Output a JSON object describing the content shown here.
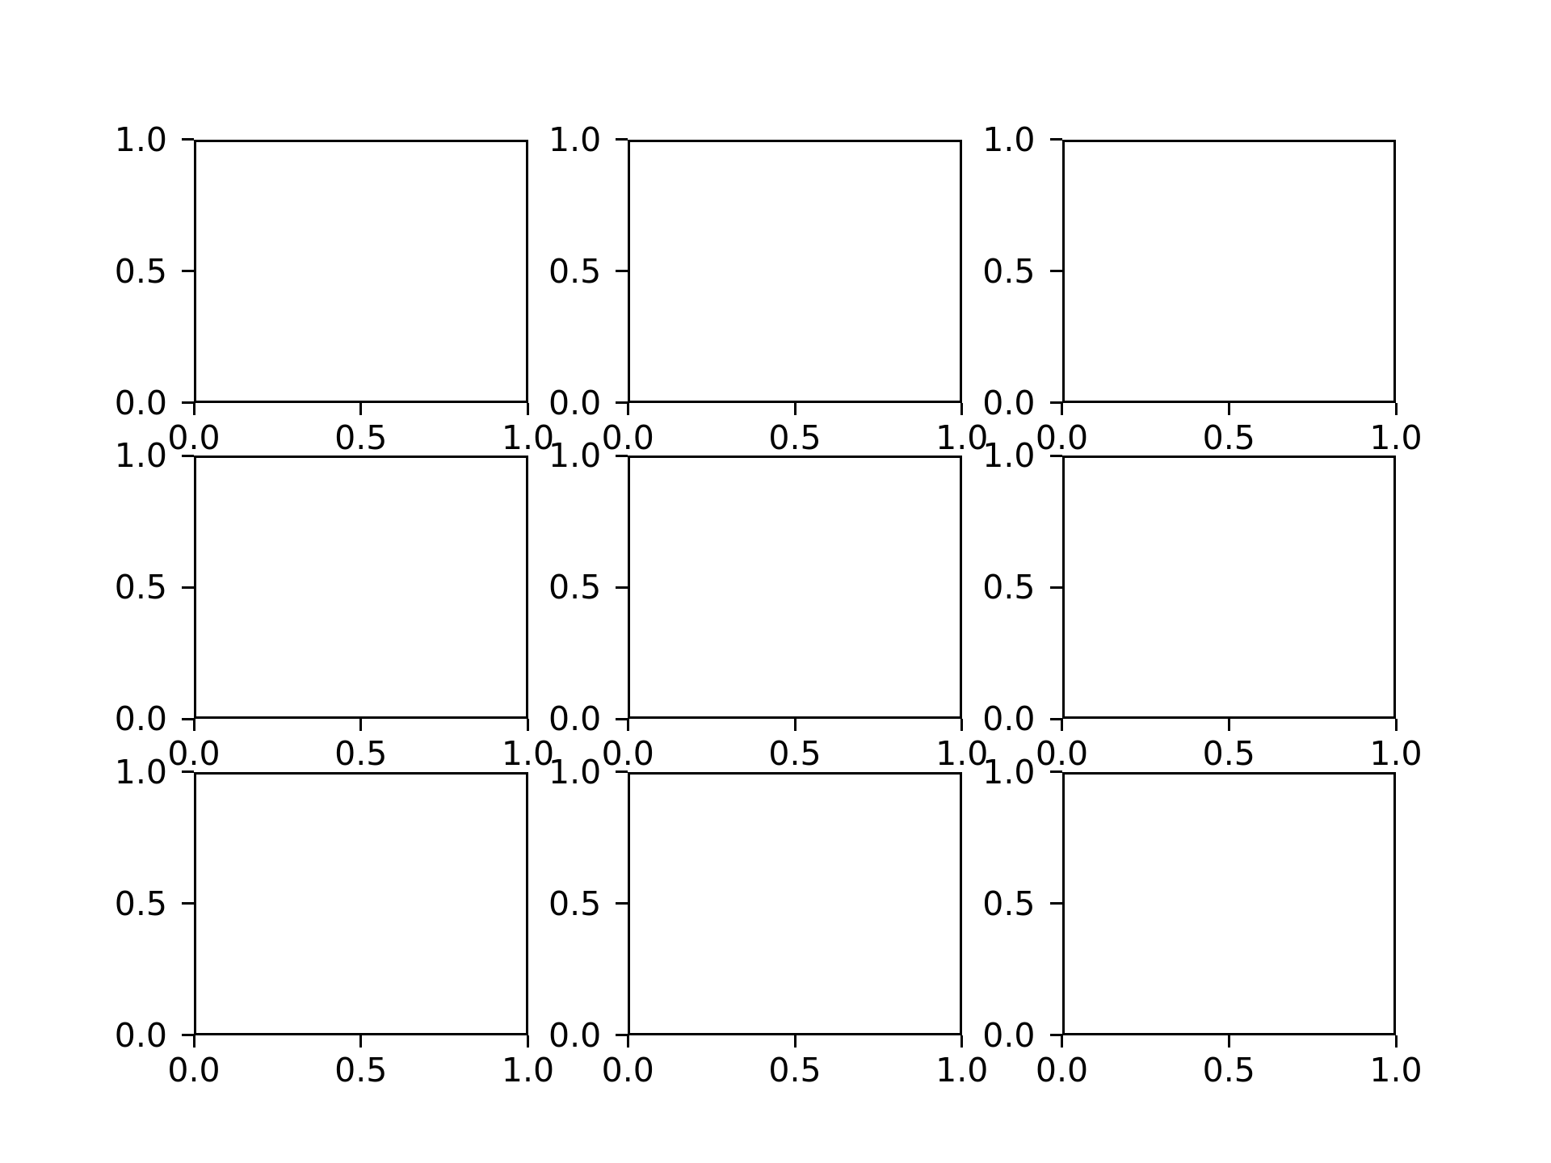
{
  "figure": {
    "background": "#ffffff",
    "axis_color": "#000000",
    "text_color": "#000000",
    "rows": 3,
    "cols": 3
  },
  "chart_data": [
    {
      "type": "empty",
      "row": 0,
      "col": 0,
      "title": "",
      "xlabel": "",
      "ylabel": "",
      "xlim": [
        0.0,
        1.0
      ],
      "ylim": [
        0.0,
        1.0
      ],
      "xticks": [
        0.0,
        0.5,
        1.0
      ],
      "yticks": [
        0.0,
        0.5,
        1.0
      ],
      "xticklabels": [
        "0.0",
        "0.5",
        "1.0"
      ],
      "yticklabels": [
        "0.0",
        "0.5",
        "1.0"
      ],
      "grid": false,
      "series": []
    },
    {
      "type": "empty",
      "row": 0,
      "col": 1,
      "title": "",
      "xlabel": "",
      "ylabel": "",
      "xlim": [
        0.0,
        1.0
      ],
      "ylim": [
        0.0,
        1.0
      ],
      "xticks": [
        0.0,
        0.5,
        1.0
      ],
      "yticks": [
        0.0,
        0.5,
        1.0
      ],
      "xticklabels": [
        "0.0",
        "0.5",
        "1.0"
      ],
      "yticklabels": [
        "0.0",
        "0.5",
        "1.0"
      ],
      "grid": false,
      "series": []
    },
    {
      "type": "empty",
      "row": 0,
      "col": 2,
      "title": "",
      "xlabel": "",
      "ylabel": "",
      "xlim": [
        0.0,
        1.0
      ],
      "ylim": [
        0.0,
        1.0
      ],
      "xticks": [
        0.0,
        0.5,
        1.0
      ],
      "yticks": [
        0.0,
        0.5,
        1.0
      ],
      "xticklabels": [
        "0.0",
        "0.5",
        "1.0"
      ],
      "yticklabels": [
        "0.0",
        "0.5",
        "1.0"
      ],
      "grid": false,
      "series": []
    },
    {
      "type": "empty",
      "row": 1,
      "col": 0,
      "title": "",
      "xlabel": "",
      "ylabel": "",
      "xlim": [
        0.0,
        1.0
      ],
      "ylim": [
        0.0,
        1.0
      ],
      "xticks": [
        0.0,
        0.5,
        1.0
      ],
      "yticks": [
        0.0,
        0.5,
        1.0
      ],
      "xticklabels": [
        "0.0",
        "0.5",
        "1.0"
      ],
      "yticklabels": [
        "0.0",
        "0.5",
        "1.0"
      ],
      "grid": false,
      "series": []
    },
    {
      "type": "empty",
      "row": 1,
      "col": 1,
      "title": "",
      "xlabel": "",
      "ylabel": "",
      "xlim": [
        0.0,
        1.0
      ],
      "ylim": [
        0.0,
        1.0
      ],
      "xticks": [
        0.0,
        0.5,
        1.0
      ],
      "yticks": [
        0.0,
        0.5,
        1.0
      ],
      "xticklabels": [
        "0.0",
        "0.5",
        "1.0"
      ],
      "yticklabels": [
        "0.0",
        "0.5",
        "1.0"
      ],
      "grid": false,
      "series": []
    },
    {
      "type": "empty",
      "row": 1,
      "col": 2,
      "title": "",
      "xlabel": "",
      "ylabel": "",
      "xlim": [
        0.0,
        1.0
      ],
      "ylim": [
        0.0,
        1.0
      ],
      "xticks": [
        0.0,
        0.5,
        1.0
      ],
      "yticks": [
        0.0,
        0.5,
        1.0
      ],
      "xticklabels": [
        "0.0",
        "0.5",
        "1.0"
      ],
      "yticklabels": [
        "0.0",
        "0.5",
        "1.0"
      ],
      "grid": false,
      "series": []
    },
    {
      "type": "empty",
      "row": 2,
      "col": 0,
      "title": "",
      "xlabel": "",
      "ylabel": "",
      "xlim": [
        0.0,
        1.0
      ],
      "ylim": [
        0.0,
        1.0
      ],
      "xticks": [
        0.0,
        0.5,
        1.0
      ],
      "yticks": [
        0.0,
        0.5,
        1.0
      ],
      "xticklabels": [
        "0.0",
        "0.5",
        "1.0"
      ],
      "yticklabels": [
        "0.0",
        "0.5",
        "1.0"
      ],
      "grid": false,
      "series": []
    },
    {
      "type": "empty",
      "row": 2,
      "col": 1,
      "title": "",
      "xlabel": "",
      "ylabel": "",
      "xlim": [
        0.0,
        1.0
      ],
      "ylim": [
        0.0,
        1.0
      ],
      "xticks": [
        0.0,
        0.5,
        1.0
      ],
      "yticks": [
        0.0,
        0.5,
        1.0
      ],
      "xticklabels": [
        "0.0",
        "0.5",
        "1.0"
      ],
      "yticklabels": [
        "0.0",
        "0.5",
        "1.0"
      ],
      "grid": false,
      "series": []
    },
    {
      "type": "empty",
      "row": 2,
      "col": 2,
      "title": "",
      "xlabel": "",
      "ylabel": "",
      "xlim": [
        0.0,
        1.0
      ],
      "ylim": [
        0.0,
        1.0
      ],
      "xticks": [
        0.0,
        0.5,
        1.0
      ],
      "yticks": [
        0.0,
        0.5,
        1.0
      ],
      "xticklabels": [
        "0.0",
        "0.5",
        "1.0"
      ],
      "yticklabels": [
        "0.0",
        "0.5",
        "1.0"
      ],
      "grid": false,
      "series": []
    }
  ]
}
